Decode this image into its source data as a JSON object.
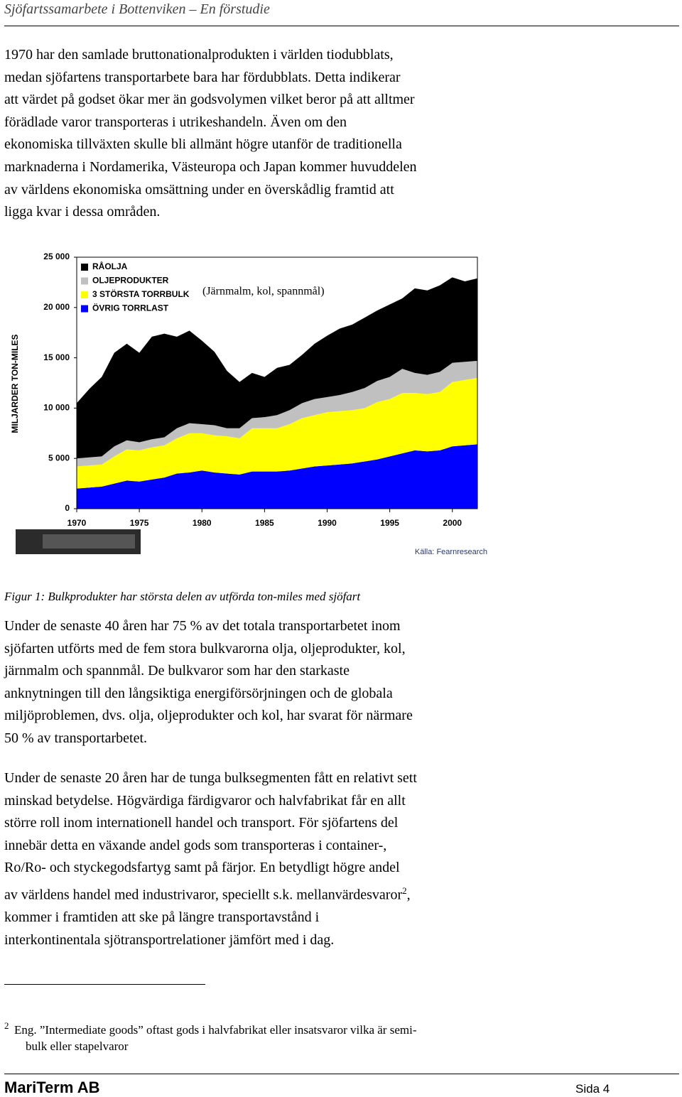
{
  "header": {
    "title": "Sjöfartssamarbete i Bottenviken – En förstudie"
  },
  "paragraph_1": {
    "lines": [
      "1970 har den samlade bruttonationalprodukten i världen tiodubblats,",
      "medan sjöfartens transportarbete bara har fördubblats. Detta indikerar",
      "att värdet på godset ökar mer än godsvolymen vilket beror på att alltmer",
      "förädlade varor transporteras i utrikeshandeln. Även om den",
      "ekonomiska tillväxten skulle bli allmänt högre utanför de traditionella",
      "marknaderna i Nordamerika, Västeuropa och Japan kommer huvuddelen",
      "av världens ekonomiska omsättning under en överskådlig framtid att",
      "ligga kvar i dessa områden."
    ]
  },
  "chart_data": {
    "type": "stacked_area",
    "y_label": "MILJARDER TON-MILES",
    "annotation": "(Järnmalm, kol, spannmål)",
    "source": "Källa: Fearnresearch",
    "x": [
      1970,
      1971,
      1972,
      1973,
      1974,
      1975,
      1976,
      1977,
      1978,
      1979,
      1980,
      1981,
      1982,
      1983,
      1984,
      1985,
      1986,
      1987,
      1988,
      1989,
      1990,
      1991,
      1992,
      1993,
      1994,
      1995,
      1996,
      1997,
      1998,
      1999,
      2000,
      2001,
      2002
    ],
    "xlim": [
      1970,
      2002
    ],
    "xticks": [
      1970,
      1975,
      1980,
      1985,
      1990,
      1995,
      2000
    ],
    "ylim": [
      0,
      25000
    ],
    "yticks": [
      0,
      {
        "value": 5000,
        "label": "5 000"
      },
      {
        "value": 10000,
        "label": "10 000"
      },
      {
        "value": 15000,
        "label": "15 000"
      },
      {
        "value": 20000,
        "label": "20 000"
      },
      {
        "value": 25000,
        "label": "25 000"
      }
    ],
    "series": [
      {
        "name": "ÖVRIG TORRLAST",
        "color": "#0000ff",
        "values": [
          2000,
          2100,
          2200,
          2500,
          2800,
          2700,
          2900,
          3100,
          3500,
          3600,
          3800,
          3600,
          3500,
          3400,
          3700,
          3700,
          3700,
          3800,
          4000,
          4200,
          4300,
          4400,
          4500,
          4700,
          4900,
          5200,
          5500,
          5800,
          5700,
          5800,
          6200,
          6300,
          6400
        ]
      },
      {
        "name": "3 STÖRSTA TORRBULK",
        "color": "#ffff00",
        "values": [
          2200,
          2200,
          2200,
          2700,
          3100,
          3100,
          3200,
          3200,
          3500,
          3900,
          3700,
          3700,
          3700,
          3600,
          4300,
          4300,
          4300,
          4600,
          5000,
          5100,
          5300,
          5300,
          5300,
          5300,
          5700,
          5700,
          6000,
          5700,
          5700,
          5800,
          6400,
          6500,
          6600
        ]
      },
      {
        "name": "OLJEPRODUKTER",
        "color": "#c0c0c0",
        "values": [
          800,
          800,
          800,
          1000,
          900,
          800,
          800,
          800,
          1000,
          1000,
          900,
          1000,
          800,
          1000,
          1000,
          1100,
          1300,
          1400,
          1500,
          1600,
          1500,
          1600,
          1800,
          2000,
          2100,
          2200,
          2400,
          2000,
          1900,
          2000,
          1900,
          1800,
          1700
        ]
      },
      {
        "name": "RÅOLJA",
        "color": "#000000",
        "values": [
          5500,
          6800,
          7900,
          9300,
          9600,
          8900,
          10200,
          10300,
          9100,
          9200,
          8300,
          7300,
          5700,
          4600,
          4500,
          4000,
          4700,
          4500,
          4800,
          5500,
          6100,
          6600,
          6700,
          7000,
          7000,
          7200,
          7000,
          8400,
          8400,
          8600,
          8500,
          8000,
          8200
        ]
      }
    ]
  },
  "caption": "Figur 1: Bulkprodukter har största delen av utförda ton-miles med sjöfart",
  "paragraph_2": {
    "lines": [
      "Under de senaste 40 åren har 75 % av det totala transportarbetet inom",
      "sjöfarten utförts med de fem stora bulkvarorna olja, oljeprodukter, kol,",
      "järnmalm och spannmål. De bulkvaror som har den starkaste",
      "anknytningen till den långsiktiga energiförsörjningen och de globala",
      "miljöproblemen, dvs. olja, oljeprodukter och kol, har svarat för närmare",
      "50 % av transportarbetet."
    ]
  },
  "paragraph_3": {
    "lines": [
      "Under de senaste 20 åren har de tunga bulksegmenten fått en relativt sett",
      "minskad betydelse. Högvärdiga färdigvaror och halvfabrikat får en allt",
      "större roll inom internationell handel och transport. För sjöfartens del",
      "innebär detta en växande andel gods som transporteras i container-,",
      "Ro/Ro- och styckegodsfartyg samt på färjor. En betydligt högre andel",
      {
        "text": "av världens handel med industrivaror, speciellt s.k. mellanvärdesvaror",
        "sup": "2",
        "tail": ","
      },
      "kommer i framtiden att ske på längre transportavstånd i",
      "interkontinentala sjötransportrelationer jämfört med i dag."
    ]
  },
  "footnote": {
    "number": 2,
    "lines": [
      "Eng. ”Intermediate goods” oftast gods i halvfabrikat eller insatsvaror vilka är semi-",
      "bulk eller stapelvaror"
    ]
  },
  "footer": {
    "company": "MariTerm AB",
    "page": "Sida 4"
  }
}
